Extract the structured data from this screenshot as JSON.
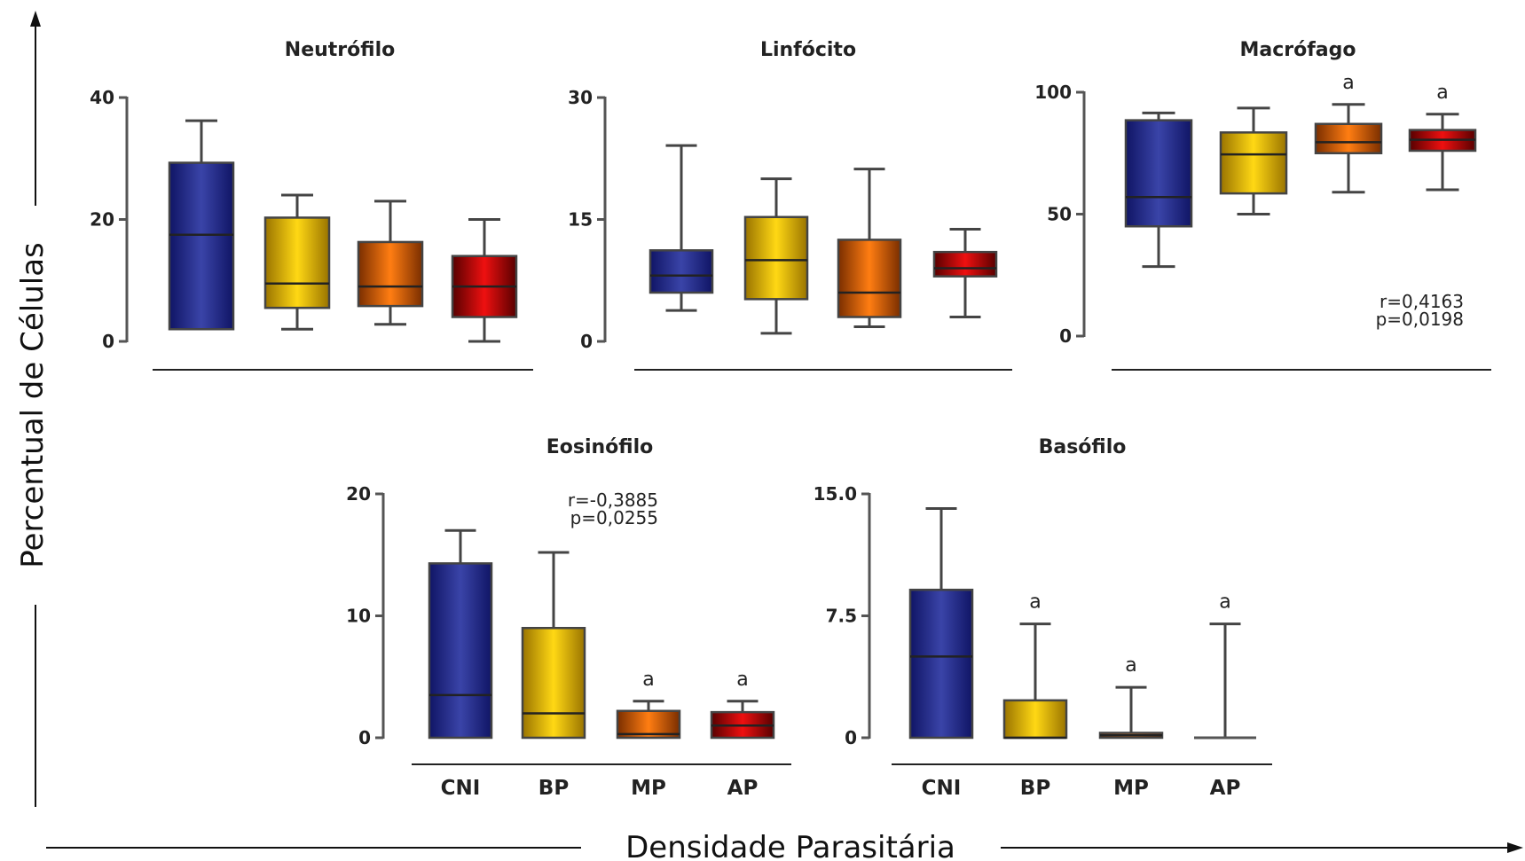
{
  "figure": {
    "ylabel": "Percentual de Células",
    "xlabel": "Densidade Parasitária"
  },
  "colors": {
    "CNI": [
      "#101565",
      "#3a44a8",
      "#101565"
    ],
    "BP": [
      "#9a7400",
      "#ffd814",
      "#9a7400"
    ],
    "MP": [
      "#7a2e00",
      "#ff7d12",
      "#7a2e00"
    ],
    "AP": [
      "#580000",
      "#ee1010",
      "#580000"
    ]
  },
  "chart_data": [
    {
      "type": "box",
      "title": "Neutrófilo",
      "categories": [
        "CNI",
        "BP",
        "MP",
        "AP"
      ],
      "show_categories": false,
      "ylim": [
        0,
        40
      ],
      "yticks": [
        "0",
        "20",
        "40"
      ],
      "ytick_values": [
        0,
        20,
        40
      ],
      "boxes": [
        {
          "min": 2,
          "q1": 2,
          "median": 17.5,
          "q3": 29.3,
          "max": 36.2,
          "sig": ""
        },
        {
          "min": 2,
          "q1": 5.5,
          "median": 9.5,
          "q3": 20.3,
          "max": 24,
          "sig": ""
        },
        {
          "min": 2.8,
          "q1": 5.8,
          "median": 9,
          "q3": 16.3,
          "max": 23,
          "sig": ""
        },
        {
          "min": 0,
          "q1": 4,
          "median": 9,
          "q3": 14,
          "max": 20,
          "sig": ""
        }
      ],
      "stats": []
    },
    {
      "type": "box",
      "title": "Linfócito",
      "categories": [
        "CNI",
        "BP",
        "MP",
        "AP"
      ],
      "show_categories": false,
      "ylim": [
        0,
        30
      ],
      "yticks": [
        "0",
        "15",
        "30"
      ],
      "ytick_values": [
        0,
        15,
        30
      ],
      "boxes": [
        {
          "min": 3.8,
          "q1": 6,
          "median": 8.1,
          "q3": 11.2,
          "max": 24.1,
          "sig": ""
        },
        {
          "min": 1,
          "q1": 5.2,
          "median": 10,
          "q3": 15.3,
          "max": 20,
          "sig": ""
        },
        {
          "min": 1.8,
          "q1": 3,
          "median": 6,
          "q3": 12.5,
          "max": 21.2,
          "sig": ""
        },
        {
          "min": 3,
          "q1": 8,
          "median": 9,
          "q3": 11,
          "max": 13.8,
          "sig": ""
        }
      ],
      "stats": []
    },
    {
      "type": "box",
      "title": "Macrófago",
      "categories": [
        "CNI",
        "BP",
        "MP",
        "AP"
      ],
      "show_categories": false,
      "ylim": [
        0,
        100
      ],
      "yticks": [
        "0",
        "50",
        "100"
      ],
      "ytick_values": [
        0,
        50,
        100
      ],
      "boxes": [
        {
          "min": 28.5,
          "q1": 45,
          "median": 57,
          "q3": 88.5,
          "max": 91.5,
          "sig": ""
        },
        {
          "min": 50,
          "q1": 58.5,
          "median": 74.5,
          "q3": 83.5,
          "max": 93.5,
          "sig": ""
        },
        {
          "min": 59,
          "q1": 75,
          "median": 79.5,
          "q3": 87,
          "max": 95,
          "sig": "a"
        },
        {
          "min": 60,
          "q1": 76,
          "median": 80.5,
          "q3": 84.5,
          "max": 91,
          "sig": "a"
        }
      ],
      "stats": [
        "r=0,4163",
        "p=0,0198"
      ]
    },
    {
      "type": "box",
      "title": "Eosinófilo",
      "categories": [
        "CNI",
        "BP",
        "MP",
        "AP"
      ],
      "show_categories": true,
      "ylim": [
        0,
        20
      ],
      "yticks": [
        "0",
        "10",
        "20"
      ],
      "ytick_values": [
        0,
        10,
        20
      ],
      "boxes": [
        {
          "min": 0,
          "q1": 0,
          "median": 3.5,
          "q3": 14.3,
          "max": 17,
          "sig": ""
        },
        {
          "min": 0,
          "q1": 0,
          "median": 2,
          "q3": 9,
          "max": 15.2,
          "sig": ""
        },
        {
          "min": 0,
          "q1": 0,
          "median": 0.3,
          "q3": 2.2,
          "max": 3,
          "sig": "a"
        },
        {
          "min": 0,
          "q1": 0,
          "median": 1,
          "q3": 2.1,
          "max": 3,
          "sig": "a"
        }
      ],
      "stats": [
        "r=-0,3885",
        "p=0,0255"
      ]
    },
    {
      "type": "box",
      "title": "Basófilo",
      "categories": [
        "CNI",
        "BP",
        "MP",
        "AP"
      ],
      "show_categories": true,
      "ylim": [
        0,
        15
      ],
      "yticks": [
        "0",
        "7.5",
        "15.0"
      ],
      "ytick_values": [
        0,
        7.5,
        15
      ],
      "boxes": [
        {
          "min": 0,
          "q1": 0,
          "median": 5,
          "q3": 9.1,
          "max": 14.1,
          "sig": ""
        },
        {
          "min": 0,
          "q1": 0,
          "median": 0,
          "q3": 2.3,
          "max": 7,
          "sig": "a"
        },
        {
          "min": 0,
          "q1": 0,
          "median": 0.15,
          "q3": 0.3,
          "max": 3.1,
          "sig": "a"
        },
        {
          "min": 0,
          "q1": 0,
          "median": 0,
          "q3": 0,
          "max": 7,
          "sig": "a"
        }
      ],
      "stats": []
    }
  ]
}
